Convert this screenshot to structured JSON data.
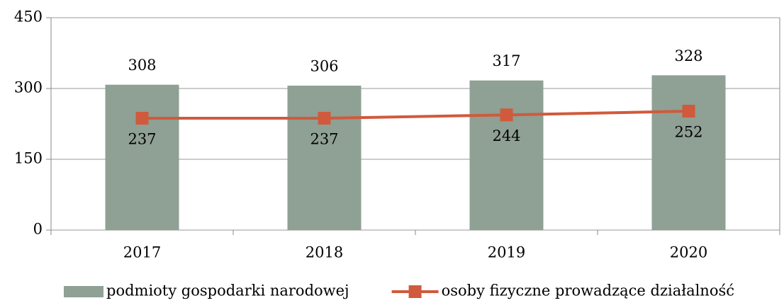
{
  "chart_data": {
    "type": "bar",
    "categories": [
      "2017",
      "2018",
      "2019",
      "2020"
    ],
    "series": [
      {
        "name": "podmioty gospodarki narodowej",
        "type": "bar",
        "color": "#8fa094",
        "values": [
          308,
          306,
          317,
          328
        ]
      },
      {
        "name": "osoby fizyczne prowadzące działalność",
        "type": "line",
        "color": "#d05a3c",
        "values": [
          237,
          237,
          244,
          252
        ]
      }
    ],
    "ylim": [
      0,
      450
    ],
    "yticks": [
      0,
      150,
      300,
      450
    ],
    "grid": true,
    "legend": "bottom"
  }
}
